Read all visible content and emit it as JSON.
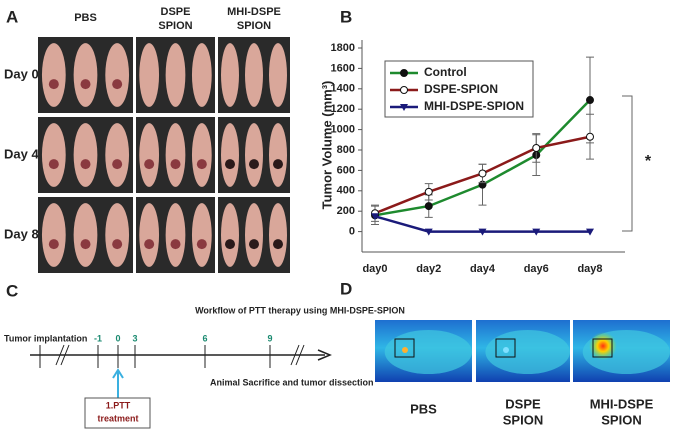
{
  "panel_a": {
    "label": "A",
    "columns": [
      [
        "PBS"
      ],
      [
        "DSPE",
        "SPION"
      ],
      [
        "MHI-DSPE",
        "SPION"
      ]
    ],
    "rows": [
      "Day 0",
      "Day 4",
      "Day 8"
    ]
  },
  "chart_data": {
    "type": "line",
    "panel_label": "B",
    "y_label": "Tumor Volume (mm³)",
    "categories": [
      "day0",
      "day2",
      "day4",
      "day6",
      "day8"
    ],
    "series": [
      {
        "name": "Control",
        "color": "#1e8a2e",
        "marker": "filled-circle",
        "values": [
          160,
          250,
          460,
          750,
          1290
        ],
        "errors": [
          90,
          110,
          200,
          200,
          420
        ]
      },
      {
        "name": "DSPE-SPION",
        "color": "#8b1a1a",
        "marker": "open-circle",
        "values": [
          180,
          390,
          570,
          820,
          930
        ],
        "errors": [
          80,
          80,
          90,
          140,
          220
        ]
      },
      {
        "name": "MHI-DSPE-SPION",
        "color": "#1a1a7a",
        "marker": "triangle",
        "values": [
          150,
          0,
          0,
          0,
          0
        ],
        "errors": [
          0,
          0,
          0,
          0,
          0
        ]
      }
    ],
    "ylim": [
      -200,
      1800
    ],
    "yticks": [
      0,
      200,
      400,
      600,
      800,
      1000,
      1200,
      1400,
      1600,
      1800
    ],
    "legend": "upper-left",
    "annotation": "*"
  },
  "panel_c": {
    "label": "C",
    "title": "Workflow of PTT therapy using MHI-DSPE-SPION",
    "start": "Tumor implantation",
    "ticks": [
      "-1",
      "0",
      "3",
      "6",
      "9"
    ],
    "end": "Animal Sacrifice and tumor dissection",
    "treatment": [
      "1.PTT",
      "treatment"
    ]
  },
  "panel_d": {
    "label": "D",
    "images": [
      [
        "PBS"
      ],
      [
        "DSPE",
        "SPION"
      ],
      [
        "MHI-DSPE",
        "SPION"
      ]
    ]
  }
}
